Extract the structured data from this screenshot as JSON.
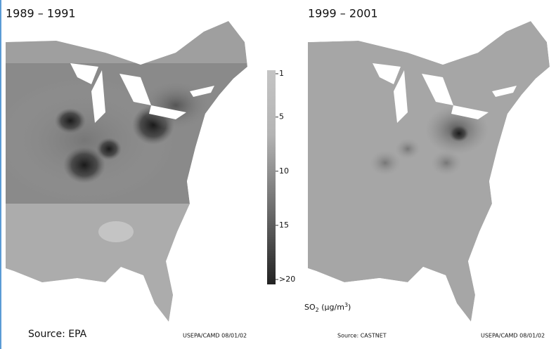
{
  "maps": [
    {
      "title": "1989 – 1991",
      "source": "Source: EPA",
      "credit": "USEPA/CAMD 08/01/02"
    },
    {
      "title": "1999 – 2001",
      "source": "Source: CASTNET",
      "credit": "USEPA/CAMD 08/01/02"
    }
  ],
  "legend": {
    "ticks": [
      1,
      5,
      10,
      15,
      {
        "value": 20,
        "label": ">20"
      }
    ],
    "unit_base": "SO",
    "unit_sub": "2",
    "unit_mid": " (µg/m",
    "unit_sup": "3",
    "unit_end": ")"
  }
}
